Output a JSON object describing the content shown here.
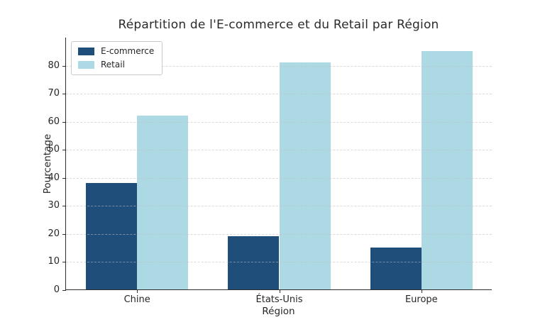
{
  "chart_data": {
    "type": "bar",
    "title": "Répartition de l'E-commerce et du Retail par Région",
    "xlabel": "Région",
    "ylabel": "Pourcentage",
    "categories": [
      "Chine",
      "États-Unis",
      "Europe"
    ],
    "series": [
      {
        "name": "E-commerce",
        "color": "#1f4e7b",
        "values": [
          38,
          19,
          15
        ]
      },
      {
        "name": "Retail",
        "color": "#add9e4",
        "values": [
          62,
          81,
          85
        ]
      }
    ],
    "ylim": [
      0,
      90
    ],
    "yticks": [
      0,
      10,
      20,
      30,
      40,
      50,
      60,
      70,
      80
    ],
    "grid": "horizontal-dashed",
    "legend_position": "upper-left",
    "bar_width_fraction": 0.36,
    "background_color": "#ffffff",
    "spine_color": "#2e2e2e"
  }
}
